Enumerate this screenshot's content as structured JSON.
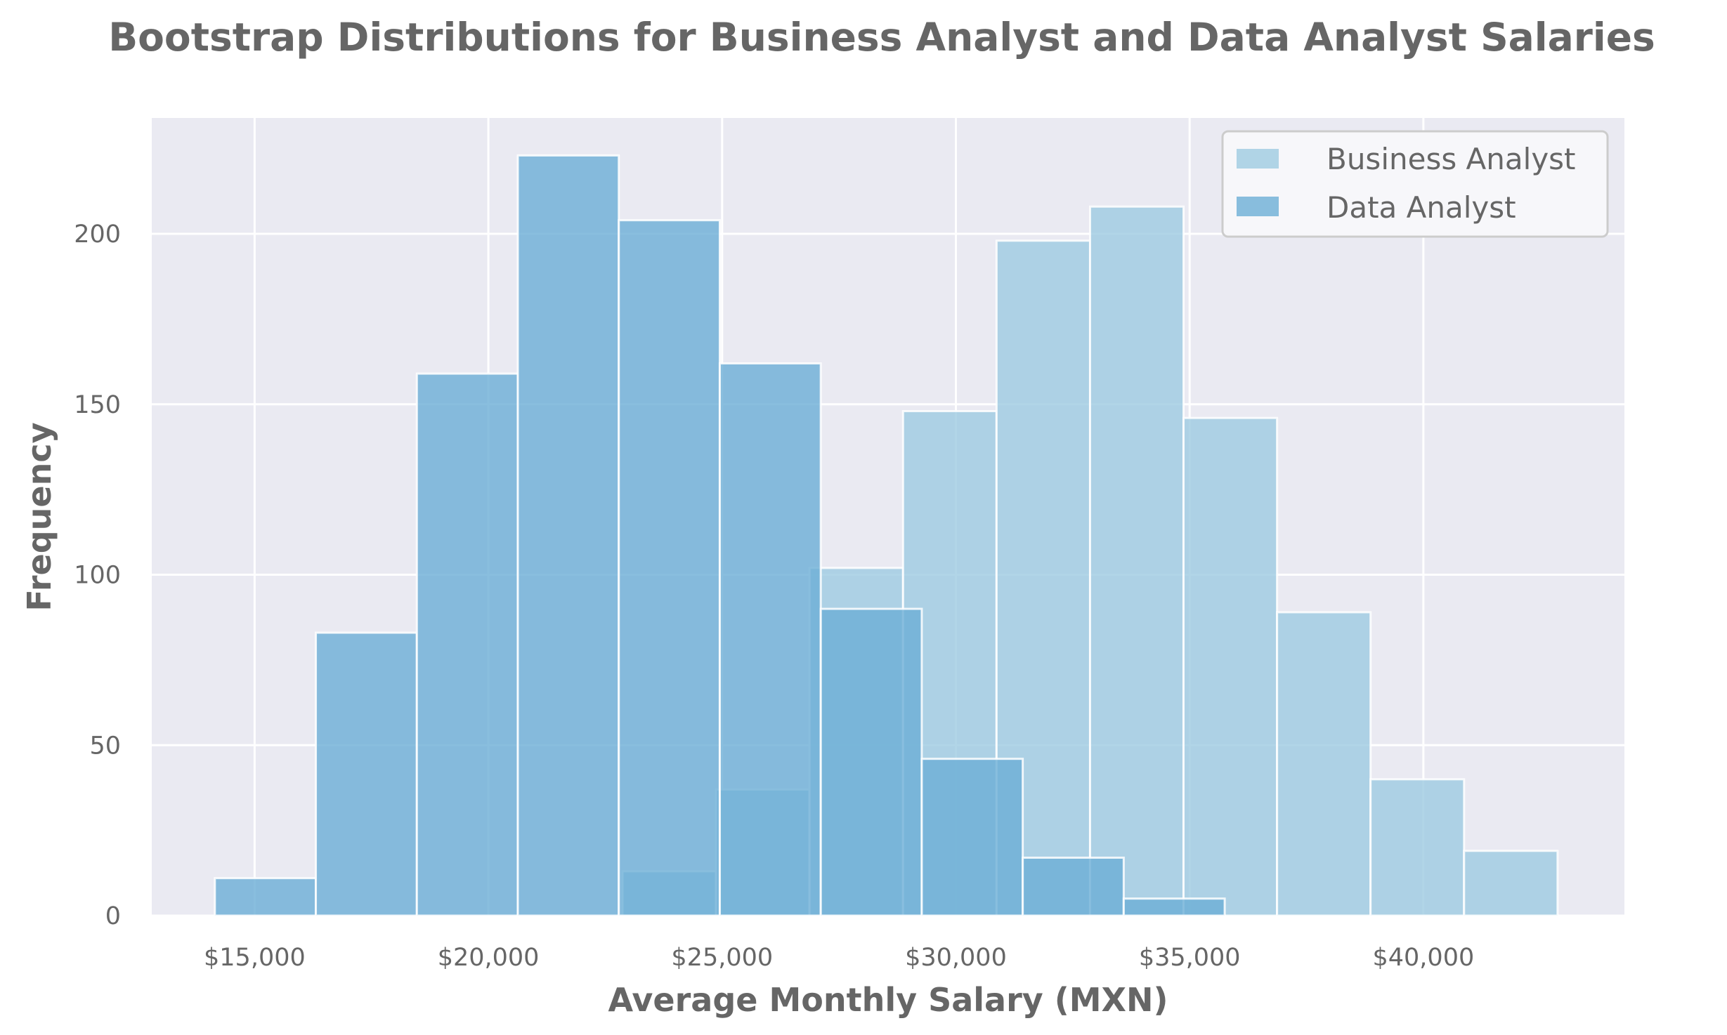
{
  "chart_data": {
    "type": "bar",
    "title": "Bootstrap Distributions for Business Analyst and Data Analyst Salaries",
    "xlabel": "Average Monthly Salary (MXN)",
    "ylabel": "Frequency",
    "xlim": [
      12800,
      44300
    ],
    "ylim": [
      0,
      234
    ],
    "x_ticks": [
      {
        "value": 15000,
        "label": "$15,000"
      },
      {
        "value": 20000,
        "label": "$20,000"
      },
      {
        "value": 25000,
        "label": "$25,000"
      },
      {
        "value": 30000,
        "label": "$30,000"
      },
      {
        "value": 35000,
        "label": "$35,000"
      },
      {
        "value": 40000,
        "label": "$40,000"
      }
    ],
    "y_ticks": [
      {
        "value": 0,
        "label": "0"
      },
      {
        "value": 50,
        "label": "50"
      },
      {
        "value": 100,
        "label": "100"
      },
      {
        "value": 150,
        "label": "150"
      },
      {
        "value": 200,
        "label": "200"
      }
    ],
    "grid": true,
    "legend_position": "top-right",
    "background_color": "#eaeaf2",
    "grid_color": "#ffffff",
    "series": [
      {
        "name": "Business Analyst",
        "color": "#9ecae1",
        "opacity": 0.8,
        "bins": [
          {
            "x0": 22870,
            "x1": 24870,
            "count": 13
          },
          {
            "x0": 24870,
            "x1": 26870,
            "count": 37
          },
          {
            "x0": 26870,
            "x1": 28870,
            "count": 102
          },
          {
            "x0": 28870,
            "x1": 30870,
            "count": 148
          },
          {
            "x0": 30870,
            "x1": 32870,
            "count": 198
          },
          {
            "x0": 32870,
            "x1": 34870,
            "count": 208
          },
          {
            "x0": 34870,
            "x1": 36870,
            "count": 146
          },
          {
            "x0": 36870,
            "x1": 38870,
            "count": 89
          },
          {
            "x0": 38870,
            "x1": 40870,
            "count": 40
          },
          {
            "x0": 40870,
            "x1": 42870,
            "count": 19
          }
        ]
      },
      {
        "name": "Data Analyst",
        "color": "#6baed6",
        "opacity": 0.8,
        "bins": [
          {
            "x0": 14150,
            "x1": 16310,
            "count": 11
          },
          {
            "x0": 16310,
            "x1": 18470,
            "count": 83
          },
          {
            "x0": 18470,
            "x1": 20630,
            "count": 159
          },
          {
            "x0": 20630,
            "x1": 22790,
            "count": 223
          },
          {
            "x0": 22790,
            "x1": 24950,
            "count": 204
          },
          {
            "x0": 24950,
            "x1": 27110,
            "count": 162
          },
          {
            "x0": 27110,
            "x1": 29270,
            "count": 90
          },
          {
            "x0": 29270,
            "x1": 31430,
            "count": 46
          },
          {
            "x0": 31430,
            "x1": 33590,
            "count": 17
          },
          {
            "x0": 33590,
            "x1": 35750,
            "count": 5
          }
        ]
      }
    ]
  }
}
